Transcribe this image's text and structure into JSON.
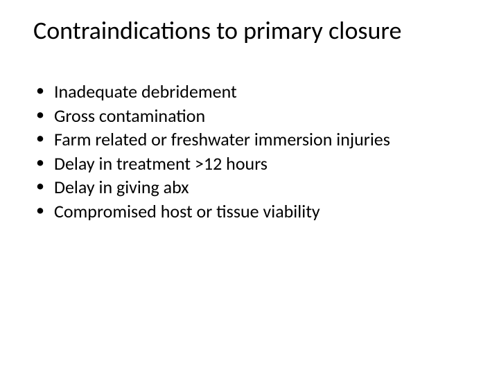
{
  "slide": {
    "title": "Contraindications to primary closure",
    "title_fontsize": 36,
    "title_color": "#000000",
    "bullets": [
      {
        "text": "Inadequate debridement"
      },
      {
        "text": "Gross contamination"
      },
      {
        "text": "Farm related or freshwater immersion injuries"
      },
      {
        "text": "Delay in treatment >12 hours"
      },
      {
        "text": "Delay in giving abx"
      },
      {
        "text": "Compromised host or tissue viability"
      }
    ],
    "bullet_fontsize": 26,
    "bullet_color": "#000000",
    "bullet_marker": "•",
    "background_color": "#ffffff"
  }
}
